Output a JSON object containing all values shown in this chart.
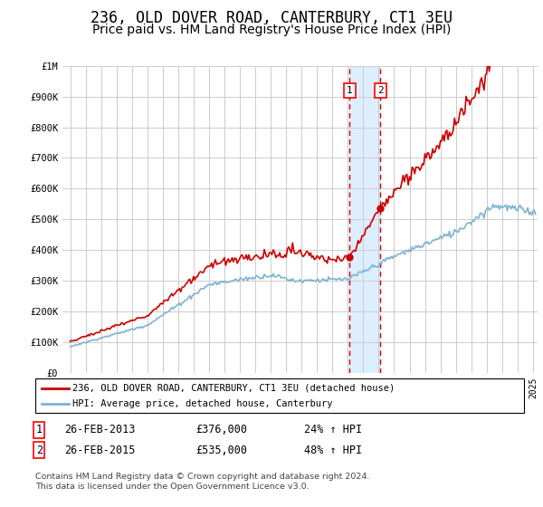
{
  "title": "236, OLD DOVER ROAD, CANTERBURY, CT1 3EU",
  "subtitle": "Price paid vs. HM Land Registry's House Price Index (HPI)",
  "legend_line1": "236, OLD DOVER ROAD, CANTERBURY, CT1 3EU (detached house)",
  "legend_line2": "HPI: Average price, detached house, Canterbury",
  "annotation_note": "Contains HM Land Registry data © Crown copyright and database right 2024.\nThis data is licensed under the Open Government Licence v3.0.",
  "table_rows": [
    {
      "num": "1",
      "date": "26-FEB-2013",
      "price": "£376,000",
      "change": "24% ↑ HPI"
    },
    {
      "num": "2",
      "date": "26-FEB-2015",
      "price": "£535,000",
      "change": "48% ↑ HPI"
    }
  ],
  "sale1_year": 2013.12,
  "sale1_price": 376000,
  "sale2_year": 2015.12,
  "sale2_price": 535000,
  "dashed_x1": 2013.12,
  "dashed_x2": 2015.12,
  "shaded_x_start": 2013.12,
  "shaded_x_end": 2015.12,
  "ylim": [
    0,
    1000000
  ],
  "xlim_start": 1994.5,
  "xlim_end": 2025.3,
  "red_color": "#cc0000",
  "blue_color": "#7fb3d3",
  "shade_color": "#ddeeff",
  "grid_color": "#cccccc",
  "bg_color": "#ffffff",
  "title_fontsize": 12,
  "subtitle_fontsize": 10
}
